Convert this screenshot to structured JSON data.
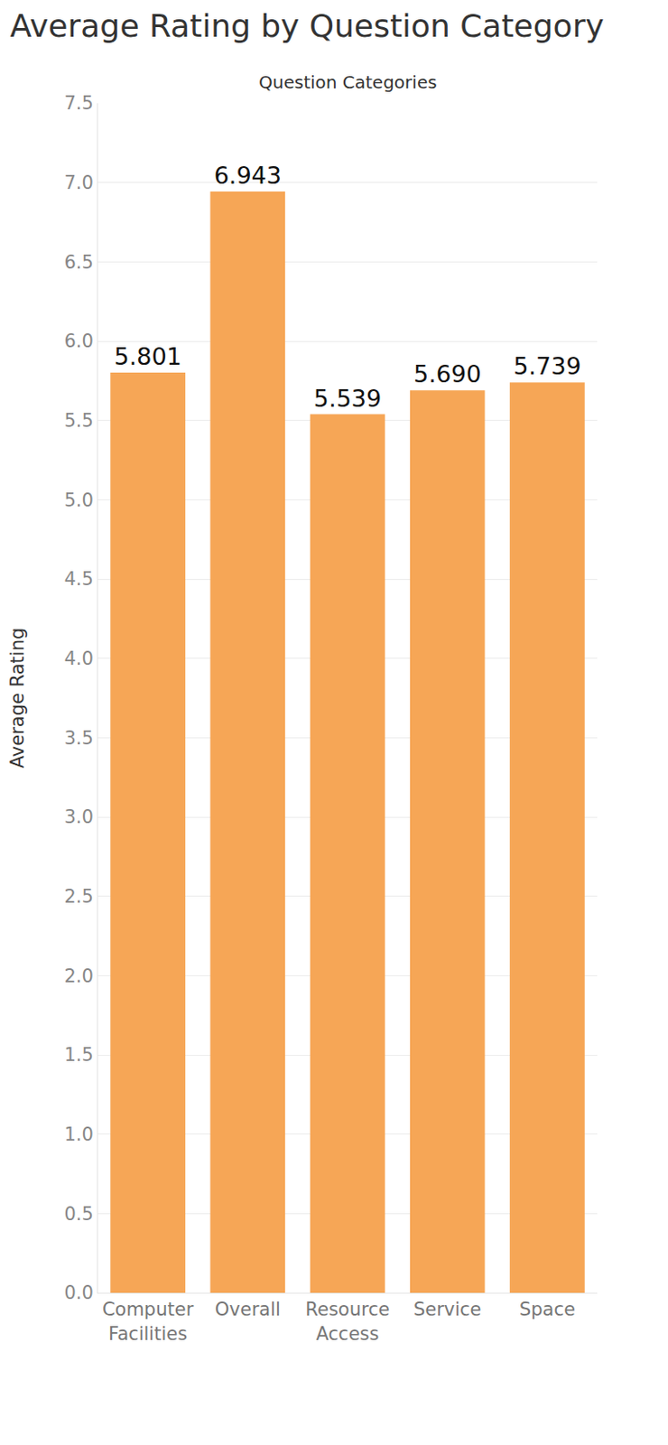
{
  "chart_data": {
    "type": "bar",
    "title": "Average Rating by Question Category",
    "xlabel": "Question Categories",
    "ylabel": "Average Rating",
    "categories": [
      "Computer Facilities",
      "Overall",
      "Resource Access",
      "Service",
      "Space"
    ],
    "values": [
      5.801,
      6.943,
      5.539,
      5.69,
      5.739
    ],
    "value_labels": [
      "5.801",
      "6.943",
      "5.539",
      "5.690",
      "5.739"
    ],
    "color": "#f6a656",
    "ylim": [
      0,
      7.5
    ],
    "yticks": [
      {
        "value": 0,
        "label": "0.0"
      },
      0.5,
      {
        "value": 1,
        "label": "1.0"
      },
      1.5,
      {
        "value": 2,
        "label": "2.0"
      },
      2.5,
      {
        "value": 3,
        "label": "3.0"
      },
      3.5,
      {
        "value": 4,
        "label": "4.0"
      },
      4.5,
      {
        "value": 5,
        "label": "5.0"
      },
      5.5,
      {
        "value": 6,
        "label": "6.0"
      },
      6.5,
      {
        "value": 7,
        "label": "7.0"
      },
      7.5
    ],
    "grid": true,
    "data_labels": true
  }
}
